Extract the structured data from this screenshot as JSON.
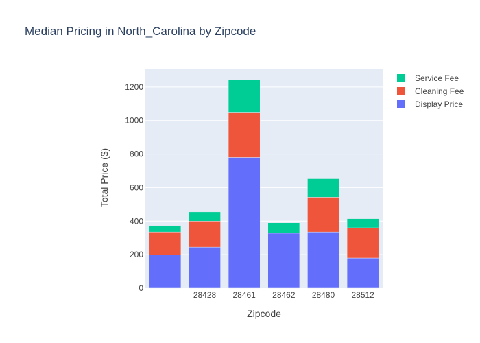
{
  "chart_data": {
    "type": "bar",
    "stacked": true,
    "title": "Median Pricing in North_Carolina by Zipcode",
    "xlabel": "Zipcode",
    "ylabel": "Total Price ($)",
    "categories": [
      "",
      "28428",
      "28461",
      "28462",
      "28480",
      "28512"
    ],
    "ylim": [
      0,
      1310
    ],
    "yticks": [
      0,
      200,
      400,
      600,
      800,
      1000,
      1200
    ],
    "grid": true,
    "legend_position": "top-right",
    "series": [
      {
        "name": "Display Price",
        "color": "#636efa",
        "values": [
          198,
          245,
          780,
          328,
          335,
          180
        ]
      },
      {
        "name": "Cleaning Fee",
        "color": "#ef553b",
        "values": [
          137,
          155,
          270,
          0,
          208,
          180
        ]
      },
      {
        "name": "Service Fee",
        "color": "#00cc96",
        "values": [
          38,
          55,
          193,
          62,
          110,
          55
        ]
      }
    ]
  }
}
